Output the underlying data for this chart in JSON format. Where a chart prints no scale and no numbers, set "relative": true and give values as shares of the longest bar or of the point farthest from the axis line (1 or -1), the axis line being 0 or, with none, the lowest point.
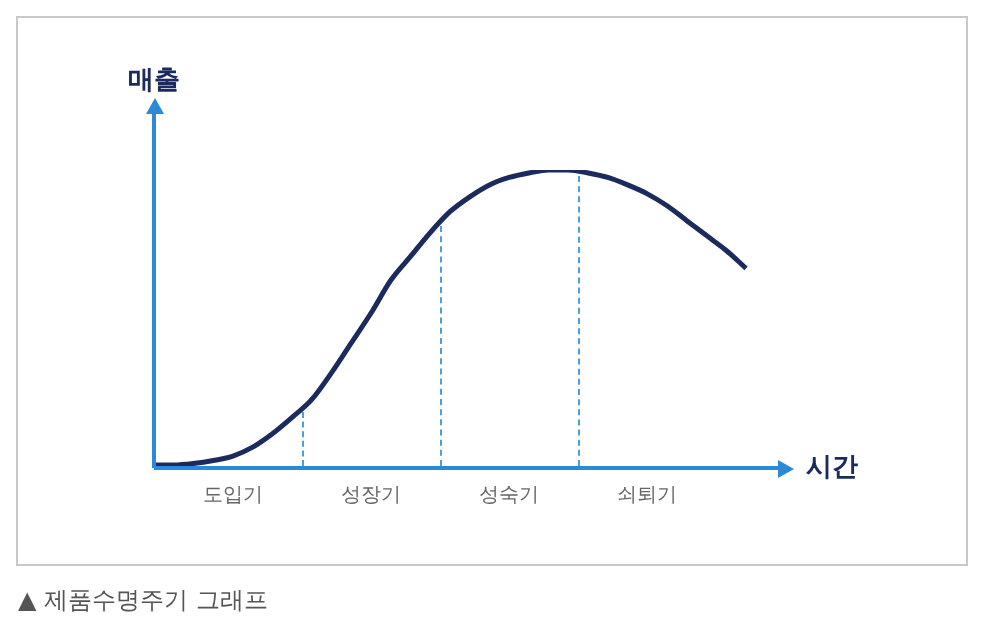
{
  "chart_data": {
    "type": "line",
    "relative": true,
    "xlabel": "시간",
    "ylabel": "매출",
    "categories": [
      null,
      null,
      null,
      null,
      "도입기",
      null,
      null,
      null,
      null,
      null,
      null,
      "성장기",
      null,
      null,
      null,
      null,
      null,
      null,
      "성숙기",
      null,
      null,
      null,
      null,
      null,
      null,
      "쇠퇴기",
      null,
      null,
      null,
      null,
      null
    ],
    "series": [
      {
        "color": "#1c2b5e",
        "values": [
          0.01,
          0.01,
          0.015,
          0.025,
          0.04,
          0.07,
          0.115,
          0.17,
          0.23,
          0.32,
          0.42,
          0.52,
          0.63,
          0.71,
          0.79,
          0.86,
          0.91,
          0.95,
          0.975,
          0.99,
          1,
          1,
          0.99,
          0.975,
          0.95,
          0.92,
          0.88,
          0.83,
          0.78,
          0.73,
          0.67
        ]
      }
    ],
    "grid": false,
    "legend": false,
    "marker": "none",
    "line_style": "solid",
    "annotations": [
      "▲ 제품수명주기 그래프"
    ]
  }
}
